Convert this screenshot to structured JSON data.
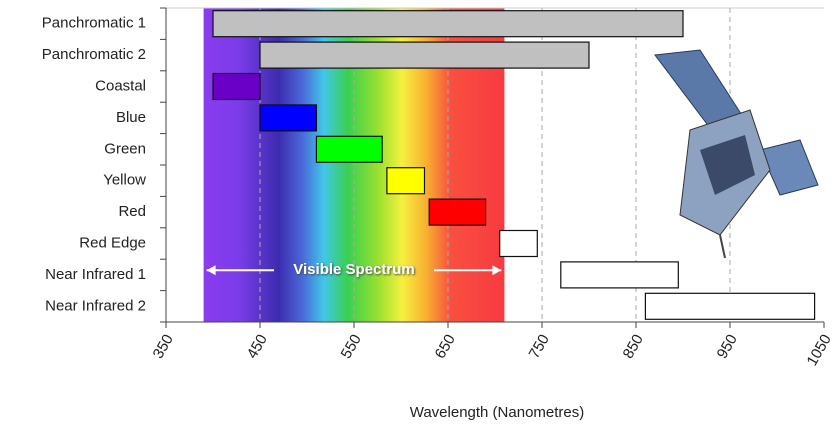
{
  "chart_data": {
    "type": "range-bar",
    "categories": [
      "Panchromatic 1",
      "Panchromatic 2",
      "Coastal",
      "Blue",
      "Green",
      "Yellow",
      "Red",
      "Red Edge",
      "Near Infrared 1",
      "Near Infrared 2"
    ],
    "ranges": [
      [
        400,
        900
      ],
      [
        450,
        800
      ],
      [
        400,
        450
      ],
      [
        450,
        510
      ],
      [
        510,
        580
      ],
      [
        585,
        625
      ],
      [
        630,
        690
      ],
      [
        705,
        745
      ],
      [
        770,
        895
      ],
      [
        860,
        1040
      ]
    ],
    "colors": [
      "#c0c0c0",
      "#c0c0c0",
      "#6a00c8",
      "#0000ff",
      "#00ff00",
      "#ffff00",
      "#ff0000",
      "#ffffff",
      "#ffffff",
      "#ffffff"
    ],
    "spectrum": {
      "label": "Visible Spectrum",
      "range": [
        390,
        710
      ]
    },
    "xlabel": "Wavelength  (Nanometres)",
    "xlim": [
      350,
      1050
    ],
    "xticks": [
      350,
      450,
      550,
      650,
      750,
      850,
      950,
      1050
    ],
    "grid": true
  }
}
